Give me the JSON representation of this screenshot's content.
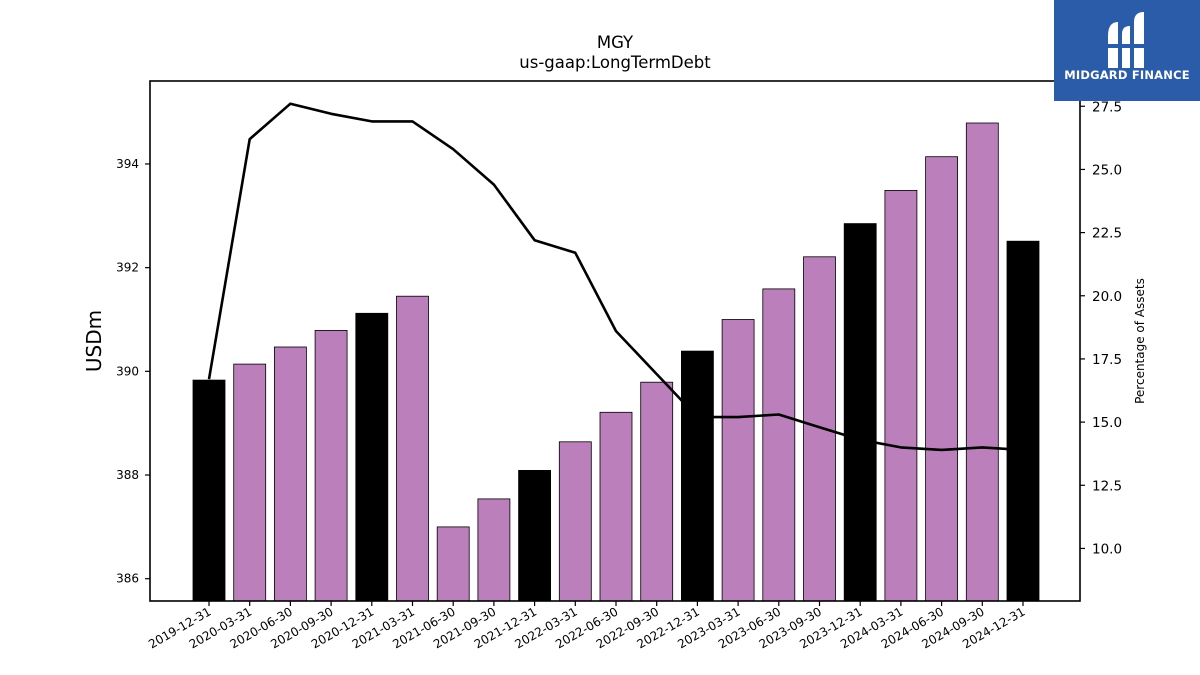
{
  "brand": {
    "name": "MIDGARD FINANCE",
    "color": "#2a5caa"
  },
  "chart_data": {
    "type": "bar",
    "title": "MGY",
    "subtitle": "us-gaap:LongTermDebt",
    "ylabel": "USDm",
    "y2label": "Percentage of Assets",
    "categories": [
      "2019-12-31",
      "2020-03-31",
      "2020-06-30",
      "2020-09-30",
      "2020-12-31",
      "2021-03-31",
      "2021-06-30",
      "2021-09-30",
      "2021-12-31",
      "2022-03-31",
      "2022-06-30",
      "2022-09-30",
      "2022-12-31",
      "2023-03-31",
      "2023-06-30",
      "2023-09-30",
      "2023-12-31",
      "2024-03-31",
      "2024-06-30",
      "2024-09-30",
      "2024-12-31"
    ],
    "values": [
      389.83,
      390.14,
      390.47,
      390.79,
      391.12,
      391.45,
      387.0,
      387.54,
      388.09,
      388.64,
      389.21,
      389.79,
      390.39,
      391.0,
      391.59,
      392.21,
      392.85,
      393.49,
      394.14,
      394.79,
      392.51
    ],
    "bar_colors": [
      "#000000",
      "#bb7fbc",
      "#bb7fbc",
      "#bb7fbc",
      "#000000",
      "#bb7fbc",
      "#bb7fbc",
      "#bb7fbc",
      "#000000",
      "#bb7fbc",
      "#bb7fbc",
      "#bb7fbc",
      "#000000",
      "#bb7fbc",
      "#bb7fbc",
      "#bb7fbc",
      "#000000",
      "#bb7fbc",
      "#bb7fbc",
      "#bb7fbc",
      "#000000"
    ],
    "line_series": {
      "axis": "right",
      "color": "#000000",
      "values": [
        16.7,
        26.2,
        27.6,
        27.2,
        26.9,
        26.9,
        25.8,
        24.4,
        22.2,
        21.7,
        18.6,
        16.9,
        15.2,
        15.2,
        15.3,
        14.8,
        14.3,
        14.0,
        13.9,
        14.0,
        13.9
      ]
    },
    "ylim": [
      385.57,
      395.6
    ],
    "y2lim": [
      7.92,
      28.5
    ],
    "yticks": [
      386,
      388,
      390,
      392,
      394
    ],
    "y2ticks": [
      10.0,
      12.5,
      15.0,
      17.5,
      20.0,
      22.5,
      25.0,
      27.5
    ],
    "grid": false,
    "legend": "none"
  }
}
